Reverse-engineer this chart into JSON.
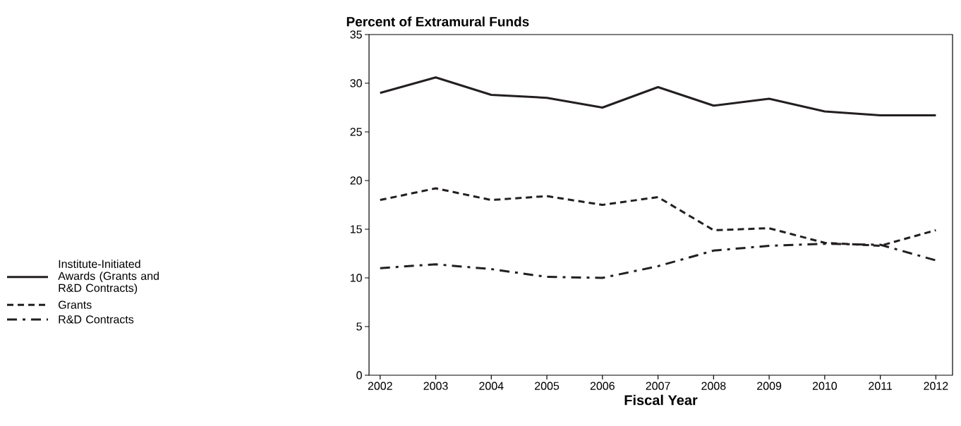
{
  "chart_data": {
    "type": "line",
    "title": "Percent of Extramural Funds",
    "xlabel": "Fiscal Year",
    "x": [
      2002,
      2003,
      2004,
      2005,
      2006,
      2007,
      2008,
      2009,
      2010,
      2011,
      2012
    ],
    "series": [
      {
        "name": "Institute-Initiated Awards (Grants and R&D Contracts)",
        "color": "#231f20",
        "line_style": "solid",
        "values": [
          29.0,
          30.6,
          28.8,
          28.5,
          27.5,
          29.6,
          27.7,
          28.4,
          27.1,
          26.7,
          26.7
        ]
      },
      {
        "name": "Grants",
        "color": "#231f20",
        "line_style": "dashed",
        "values": [
          18.0,
          19.2,
          18.0,
          18.4,
          17.5,
          18.3,
          14.9,
          15.1,
          13.6,
          13.3,
          14.9
        ]
      },
      {
        "name": "R&D Contracts",
        "color": "#231f20",
        "line_style": "dashdot",
        "values": [
          11.0,
          11.4,
          10.9,
          10.1,
          10.0,
          11.2,
          12.8,
          13.3,
          13.5,
          13.4,
          11.8
        ]
      }
    ],
    "xlim": [
      2001.8,
      2012.3
    ],
    "ylim": [
      0,
      35
    ],
    "xticks": [
      2002,
      2003,
      2004,
      2005,
      2006,
      2007,
      2008,
      2009,
      2010,
      2011,
      2012
    ],
    "yticks": [
      0,
      5,
      10,
      15,
      20,
      25,
      30,
      35
    ],
    "grid": false,
    "legend": "left",
    "marker": "none"
  }
}
